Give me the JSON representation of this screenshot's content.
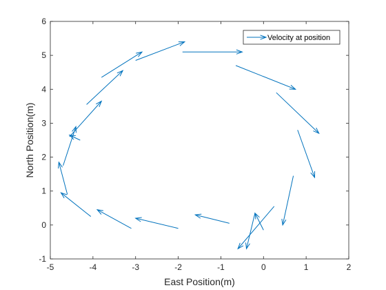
{
  "chart_data": {
    "type": "quiver",
    "xlabel": "East Position(m)",
    "ylabel": "North Position(m)",
    "xlim": [
      -5,
      2
    ],
    "ylim": [
      -1,
      6
    ],
    "xticks": [
      -5,
      -4,
      -3,
      -2,
      -1,
      0,
      1,
      2
    ],
    "yticks": [
      -1,
      0,
      1,
      2,
      3,
      4,
      5,
      6
    ],
    "grid": false,
    "legend_position": "top-right",
    "series": [
      {
        "name": "Velocity at position",
        "color": "#0072BD",
        "arrows": [
          {
            "x1": -1.9,
            "y1": 5.1,
            "x2": -0.5,
            "y2": 5.1
          },
          {
            "x1": -0.65,
            "y1": 4.7,
            "x2": 0.75,
            "y2": 4.0
          },
          {
            "x1": 0.3,
            "y1": 3.9,
            "x2": 1.3,
            "y2": 2.7
          },
          {
            "x1": 0.8,
            "y1": 2.8,
            "x2": 1.2,
            "y2": 1.4
          },
          {
            "x1": 0.7,
            "y1": 1.45,
            "x2": 0.45,
            "y2": 0.0
          },
          {
            "x1": 0.25,
            "y1": 0.55,
            "x2": -0.6,
            "y2": -0.7
          },
          {
            "x1": -0.2,
            "y1": 0.35,
            "x2": -0.4,
            "y2": -0.7
          },
          {
            "x1": 0.0,
            "y1": -0.15,
            "x2": -0.2,
            "y2": 0.35
          },
          {
            "x1": -0.8,
            "y1": 0.05,
            "x2": -1.6,
            "y2": 0.3
          },
          {
            "x1": -2.0,
            "y1": -0.1,
            "x2": -3.0,
            "y2": 0.2
          },
          {
            "x1": -3.1,
            "y1": -0.1,
            "x2": -3.9,
            "y2": 0.45
          },
          {
            "x1": -4.05,
            "y1": 0.25,
            "x2": -4.75,
            "y2": 0.95
          },
          {
            "x1": -4.6,
            "y1": 0.9,
            "x2": -4.8,
            "y2": 1.85
          },
          {
            "x1": -4.7,
            "y1": 1.75,
            "x2": -4.4,
            "y2": 2.9
          },
          {
            "x1": -4.3,
            "y1": 2.5,
            "x2": -4.55,
            "y2": 2.65
          },
          {
            "x1": -4.55,
            "y1": 2.6,
            "x2": -3.8,
            "y2": 3.65
          },
          {
            "x1": -4.15,
            "y1": 3.55,
            "x2": -3.3,
            "y2": 4.55
          },
          {
            "x1": -3.8,
            "y1": 4.35,
            "x2": -2.85,
            "y2": 5.1
          },
          {
            "x1": -3.0,
            "y1": 4.85,
            "x2": -1.85,
            "y2": 5.4
          }
        ]
      }
    ]
  }
}
